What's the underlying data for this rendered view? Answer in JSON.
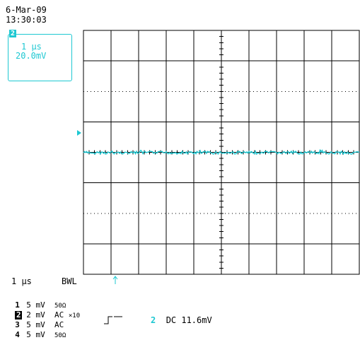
{
  "header": {
    "date": "6-Mar-09",
    "time": "13:30:03"
  },
  "cursor_box": {
    "channel": "2",
    "time_div": "1 μs",
    "volts": "20.0mV"
  },
  "timebase": {
    "value": "1 μs",
    "bwl": "BWL"
  },
  "channels": [
    {
      "num": "1",
      "volts": "5 mV",
      "coupling": "",
      "extra": "50Ω",
      "highlight": false
    },
    {
      "num": "2",
      "volts": "2 mV",
      "coupling": "AC",
      "extra": "×10",
      "highlight": true
    },
    {
      "num": "3",
      "volts": "5 mV",
      "coupling": "AC",
      "extra": "",
      "highlight": false
    },
    {
      "num": "4",
      "volts": "5 mV",
      "coupling": "",
      "extra": "50Ω",
      "highlight": false
    }
  ],
  "trigger": {
    "source": "2",
    "coupling_level": "DC 11.6mV"
  },
  "colors": {
    "trace": "#1ec8d2",
    "grid": "#000000"
  }
}
